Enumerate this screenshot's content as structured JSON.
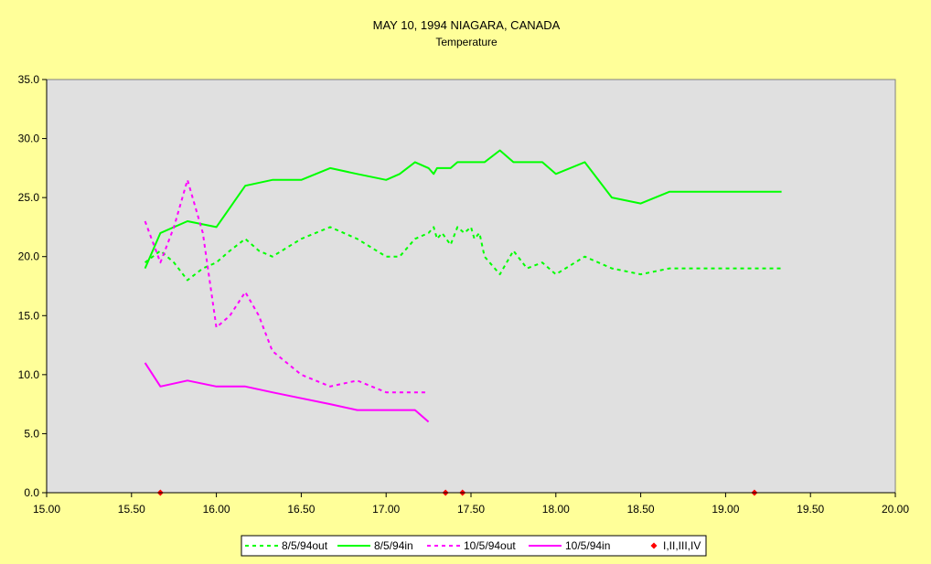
{
  "chart_data": {
    "type": "line",
    "title": "MAY 10, 1994 NIAGARA, CANADA",
    "subtitle": "Temperature",
    "xlim": [
      15.0,
      20.0
    ],
    "ylim": [
      0.0,
      35.0
    ],
    "x_ticks": [
      "15.00",
      "15.50",
      "16.00",
      "16.50",
      "17.00",
      "17.50",
      "18.00",
      "18.50",
      "19.00",
      "19.50",
      "20.00"
    ],
    "y_ticks": [
      "0.0",
      "5.0",
      "10.0",
      "15.0",
      "20.0",
      "25.0",
      "30.0",
      "35.0"
    ],
    "grid": false,
    "plot_background": "#E0E0E0",
    "page_background": "#FFFF99",
    "legend_position": "bottom",
    "series": [
      {
        "name": "8/5/94out",
        "color": "#00FF00",
        "style": "dashed",
        "x": [
          15.58,
          15.67,
          15.75,
          15.83,
          15.92,
          16.0,
          16.08,
          16.17,
          16.25,
          16.33,
          16.5,
          16.67,
          16.83,
          17.0,
          17.08,
          17.17,
          17.25,
          17.28,
          17.3,
          17.33,
          17.38,
          17.42,
          17.46,
          17.5,
          17.52,
          17.55,
          17.58,
          17.67,
          17.75,
          17.83,
          17.92,
          18.0,
          18.17,
          18.33,
          18.5,
          18.67,
          18.83,
          19.0,
          19.17,
          19.33
        ],
        "y": [
          19.5,
          20.5,
          19.5,
          18.0,
          19.0,
          19.5,
          20.5,
          21.5,
          20.5,
          20.0,
          21.5,
          22.5,
          21.5,
          20.0,
          20.0,
          21.5,
          22.0,
          22.5,
          21.5,
          22.0,
          21.0,
          22.5,
          22.0,
          22.5,
          21.5,
          22.0,
          20.0,
          18.5,
          20.5,
          19.0,
          19.5,
          18.5,
          20.0,
          19.0,
          18.5,
          19.0,
          19.0,
          19.0,
          19.0,
          19.0
        ]
      },
      {
        "name": "8/5/94in",
        "color": "#00FF00",
        "style": "solid",
        "x": [
          15.58,
          15.67,
          15.83,
          16.0,
          16.17,
          16.33,
          16.5,
          16.67,
          16.83,
          17.0,
          17.08,
          17.17,
          17.25,
          17.28,
          17.3,
          17.33,
          17.38,
          17.42,
          17.5,
          17.58,
          17.67,
          17.75,
          17.92,
          18.0,
          18.17,
          18.33,
          18.5,
          18.67,
          18.83,
          19.0,
          19.17,
          19.33
        ],
        "y": [
          19.0,
          22.0,
          23.0,
          22.5,
          26.0,
          26.5,
          26.5,
          27.5,
          27.0,
          26.5,
          27.0,
          28.0,
          27.5,
          27.0,
          27.5,
          27.5,
          27.5,
          28.0,
          28.0,
          28.0,
          29.0,
          28.0,
          28.0,
          27.0,
          28.0,
          25.0,
          24.5,
          25.5,
          25.5,
          25.5,
          25.5,
          25.5
        ]
      },
      {
        "name": "10/5/94out",
        "color": "#FF00FF",
        "style": "dashed",
        "x": [
          15.58,
          15.67,
          15.75,
          15.83,
          15.92,
          16.0,
          16.08,
          16.17,
          16.25,
          16.33,
          16.5,
          16.67,
          16.83,
          17.0,
          17.17,
          17.25
        ],
        "y": [
          23.0,
          19.5,
          22.5,
          26.5,
          22.0,
          14.0,
          15.0,
          17.0,
          15.0,
          12.0,
          10.0,
          9.0,
          9.5,
          8.5,
          8.5,
          8.5
        ]
      },
      {
        "name": "10/5/94in",
        "color": "#FF00FF",
        "style": "solid",
        "x": [
          15.58,
          15.67,
          15.83,
          16.0,
          16.17,
          16.33,
          16.5,
          16.67,
          16.83,
          17.0,
          17.17,
          17.25
        ],
        "y": [
          11.0,
          9.0,
          9.5,
          9.0,
          9.0,
          8.5,
          8.0,
          7.5,
          7.0,
          7.0,
          7.0,
          6.0
        ]
      },
      {
        "name": "I,II,III,IV",
        "color": "#FF0000",
        "style": "marker",
        "x": [
          15.67,
          17.35,
          17.45,
          19.17
        ],
        "y": [
          0.0,
          0.0,
          0.0,
          0.0
        ]
      }
    ]
  }
}
